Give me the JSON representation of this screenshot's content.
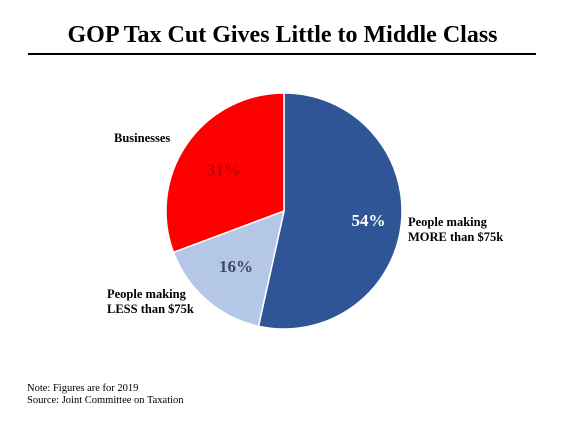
{
  "chart_data": {
    "type": "pie",
    "title": "GOP Tax Cut Gives Little to Middle Class",
    "slices": [
      {
        "name": "People making MORE than $75k",
        "label_lines": [
          "People making",
          "MORE than $75k"
        ],
        "value": 54,
        "value_label": "54%",
        "color": "#2F5597"
      },
      {
        "name": "People making LESS than $75k",
        "label_lines": [
          "People making",
          "LESS than $75k"
        ],
        "value": 16,
        "value_label": "16%",
        "color": "#B4C7E7"
      },
      {
        "name": "Businesses",
        "label_lines": [
          "Businesses"
        ],
        "value": 31,
        "value_label": "31%",
        "color": "#FF0000"
      }
    ]
  },
  "notes": {
    "line1": "Note: Figures are for 2019",
    "line2": "Source: Joint Committee  on Taxation"
  }
}
